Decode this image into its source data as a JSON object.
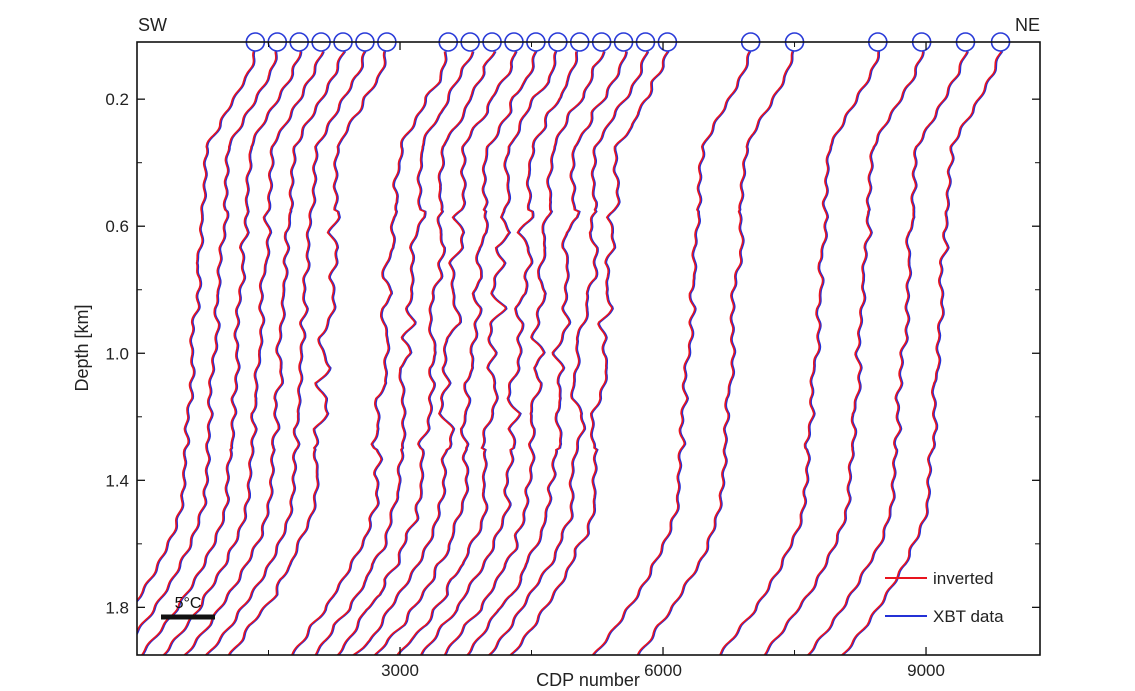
{
  "chart_data": {
    "type": "line",
    "xlabel": "CDP number",
    "ylabel": "Depth [km]",
    "xlim": [
      0,
      10300
    ],
    "ylim": [
      0.02,
      1.95
    ],
    "y_inverted": true,
    "grid": false,
    "xticks": [
      3000,
      6000,
      9000
    ],
    "xtick_labels": [
      "3000",
      "6000",
      "9000"
    ],
    "yticks": [
      0.2,
      0.6,
      1.0,
      1.4,
      1.8
    ],
    "ytick_labels": [
      "0.2",
      "0.6",
      "1.0",
      "1.4",
      "1.8"
    ],
    "corner_labels": {
      "left": "SW",
      "right": "NE"
    },
    "scale_bar_label": "5°C",
    "legend_position": "bottom-right",
    "colors": {
      "inverted": "#e8141e",
      "xbt": "#2431d6",
      "marker": "#2a3bd8",
      "axes": "#111111"
    },
    "xbt_stations": [
      1350,
      1600,
      1850,
      2100,
      2350,
      2600,
      2850,
      3550,
      3800,
      4050,
      4300,
      4550,
      4800,
      5050,
      5300,
      5550,
      5800,
      6050,
      7000,
      7500,
      8450,
      8950,
      9450,
      9850
    ],
    "series": [
      {
        "name": "inverted",
        "color": "#e8141e"
      },
      {
        "name": "XBT data",
        "color": "#2431d6"
      }
    ]
  }
}
